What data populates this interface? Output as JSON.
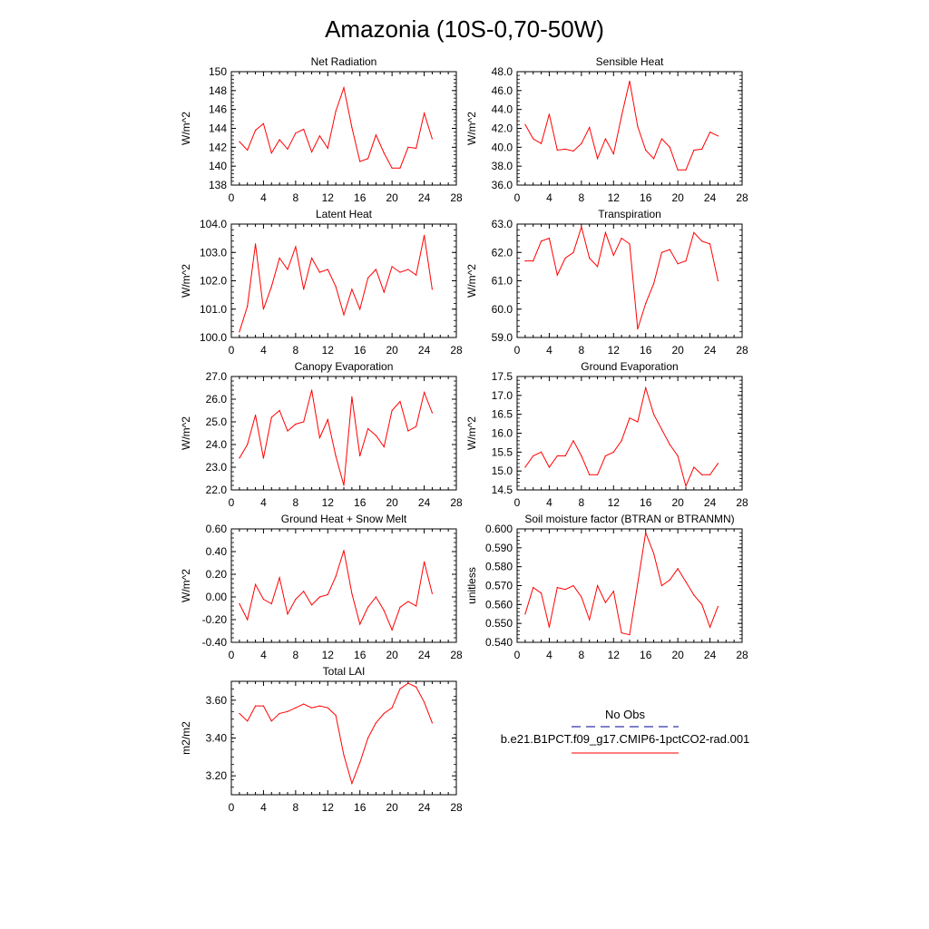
{
  "title": "Amazonia (10S-0,70-50W)",
  "colors": {
    "model_line": "#ff0000",
    "obs_line": "#3333aa",
    "axis": "#000000"
  },
  "legend": {
    "items": [
      {
        "label": "No Obs",
        "style": "dashed",
        "color": "#3333aa"
      },
      {
        "label": "b.e21.B1PCT.f09_g17.CMIP6-1pctCO2-rad.001",
        "style": "solid",
        "color": "#ff0000"
      }
    ]
  },
  "chart_data": [
    {
      "type": "line",
      "title": "Net Radiation",
      "ylabel": "W/m^2",
      "xlim": [
        0,
        28
      ],
      "xticks": [
        0,
        4,
        8,
        12,
        16,
        20,
        24,
        28
      ],
      "ylim": [
        138,
        150
      ],
      "yticks": [
        138,
        140,
        142,
        144,
        146,
        148,
        150
      ],
      "ytick_labels": [
        "138",
        "140",
        "142",
        "144",
        "146",
        "148",
        "150"
      ],
      "series": [
        {
          "name": "b.e21.B1PCT.f09_g17.CMIP6-1pctCO2-rad.001",
          "x": [
            1,
            2,
            3,
            4,
            5,
            6,
            7,
            8,
            9,
            10,
            11,
            12,
            13,
            14,
            15,
            16,
            17,
            18,
            19,
            20,
            21,
            22,
            23,
            24,
            25
          ],
          "y": [
            142.6,
            141.7,
            143.8,
            144.5,
            141.4,
            142.8,
            141.8,
            143.5,
            143.9,
            141.5,
            143.2,
            141.9,
            145.8,
            148.3,
            144.1,
            140.5,
            140.8,
            143.3,
            141.4,
            139.8,
            139.8,
            142.0,
            141.9,
            145.6,
            142.9
          ]
        }
      ]
    },
    {
      "type": "line",
      "title": "Sensible Heat",
      "ylabel": "W/m^2",
      "xlim": [
        0,
        28
      ],
      "xticks": [
        0,
        4,
        8,
        12,
        16,
        20,
        24,
        28
      ],
      "ylim": [
        36,
        48
      ],
      "yticks": [
        36,
        38,
        40,
        42,
        44,
        46,
        48
      ],
      "ytick_labels": [
        "36.0",
        "38.0",
        "40.0",
        "42.0",
        "44.0",
        "46.0",
        "48.0"
      ],
      "series": [
        {
          "name": "b.e21.B1PCT.f09_g17.CMIP6-1pctCO2-rad.001",
          "x": [
            1,
            2,
            3,
            4,
            5,
            6,
            7,
            8,
            9,
            10,
            11,
            12,
            13,
            14,
            15,
            16,
            17,
            18,
            19,
            20,
            21,
            22,
            23,
            24,
            25
          ],
          "y": [
            42.4,
            40.9,
            40.4,
            43.5,
            39.7,
            39.8,
            39.6,
            40.4,
            42.1,
            38.8,
            40.9,
            39.3,
            43.3,
            47.0,
            42.2,
            39.7,
            38.8,
            40.9,
            40.0,
            37.6,
            37.6,
            39.7,
            39.8,
            41.6,
            41.2
          ]
        }
      ]
    },
    {
      "type": "line",
      "title": "Latent Heat",
      "ylabel": "W/m^2",
      "xlim": [
        0,
        28
      ],
      "xticks": [
        0,
        4,
        8,
        12,
        16,
        20,
        24,
        28
      ],
      "ylim": [
        100,
        104
      ],
      "yticks": [
        100,
        101,
        102,
        103,
        104
      ],
      "ytick_labels": [
        "100.0",
        "101.0",
        "102.0",
        "103.0",
        "104.0"
      ],
      "series": [
        {
          "name": "b.e21.B1PCT.f09_g17.CMIP6-1pctCO2-rad.001",
          "x": [
            1,
            2,
            3,
            4,
            5,
            6,
            7,
            8,
            9,
            10,
            11,
            12,
            13,
            14,
            15,
            16,
            17,
            18,
            19,
            20,
            21,
            22,
            23,
            24,
            25
          ],
          "y": [
            100.2,
            101.1,
            103.3,
            101.0,
            101.8,
            102.8,
            102.4,
            103.2,
            101.7,
            102.8,
            102.3,
            102.4,
            101.8,
            100.8,
            101.7,
            101.0,
            102.1,
            102.4,
            101.6,
            102.5,
            102.3,
            102.4,
            102.2,
            103.6,
            101.7
          ]
        }
      ]
    },
    {
      "type": "line",
      "title": "Transpiration",
      "ylabel": "W/m^2",
      "xlim": [
        0,
        28
      ],
      "xticks": [
        0,
        4,
        8,
        12,
        16,
        20,
        24,
        28
      ],
      "ylim": [
        59,
        63
      ],
      "yticks": [
        59,
        60,
        61,
        62,
        63
      ],
      "ytick_labels": [
        "59.0",
        "60.0",
        "61.0",
        "62.0",
        "63.0"
      ],
      "series": [
        {
          "name": "b.e21.B1PCT.f09_g17.CMIP6-1pctCO2-rad.001",
          "x": [
            1,
            2,
            3,
            4,
            5,
            6,
            7,
            8,
            9,
            10,
            11,
            12,
            13,
            14,
            15,
            16,
            17,
            18,
            19,
            20,
            21,
            22,
            23,
            24,
            25
          ],
          "y": [
            61.7,
            61.7,
            62.4,
            62.5,
            61.2,
            61.8,
            62.0,
            62.9,
            61.8,
            61.5,
            62.7,
            61.9,
            62.5,
            62.3,
            59.3,
            60.2,
            60.9,
            62.0,
            62.1,
            61.6,
            61.7,
            62.7,
            62.4,
            62.3,
            61.0
          ]
        }
      ]
    },
    {
      "type": "line",
      "title": "Canopy Evaporation",
      "ylabel": "W/m^2",
      "xlim": [
        0,
        28
      ],
      "xticks": [
        0,
        4,
        8,
        12,
        16,
        20,
        24,
        28
      ],
      "ylim": [
        22,
        27
      ],
      "yticks": [
        22,
        23,
        24,
        25,
        26,
        27
      ],
      "ytick_labels": [
        "22.0",
        "23.0",
        "24.0",
        "25.0",
        "26.0",
        "27.0"
      ],
      "series": [
        {
          "name": "b.e21.B1PCT.f09_g17.CMIP6-1pctCO2-rad.001",
          "x": [
            1,
            2,
            3,
            4,
            5,
            6,
            7,
            8,
            9,
            10,
            11,
            12,
            13,
            14,
            15,
            16,
            17,
            18,
            19,
            20,
            21,
            22,
            23,
            24,
            25
          ],
          "y": [
            23.4,
            24.0,
            25.3,
            23.4,
            25.2,
            25.5,
            24.6,
            24.9,
            25.0,
            26.4,
            24.3,
            25.1,
            23.5,
            22.2,
            26.1,
            23.5,
            24.7,
            24.4,
            23.9,
            25.5,
            25.9,
            24.6,
            24.8,
            26.3,
            25.4
          ]
        }
      ]
    },
    {
      "type": "line",
      "title": "Ground Evaporation",
      "ylabel": "W/m^2",
      "xlim": [
        0,
        28
      ],
      "xticks": [
        0,
        4,
        8,
        12,
        16,
        20,
        24,
        28
      ],
      "ylim": [
        14.5,
        17.5
      ],
      "yticks": [
        14.5,
        15,
        15.5,
        16,
        16.5,
        17,
        17.5
      ],
      "ytick_labels": [
        "14.5",
        "15.0",
        "15.5",
        "16.0",
        "16.5",
        "17.0",
        "17.5"
      ],
      "series": [
        {
          "name": "b.e21.B1PCT.f09_g17.CMIP6-1pctCO2-rad.001",
          "x": [
            1,
            2,
            3,
            4,
            5,
            6,
            7,
            8,
            9,
            10,
            11,
            12,
            13,
            14,
            15,
            16,
            17,
            18,
            19,
            20,
            21,
            22,
            23,
            24,
            25
          ],
          "y": [
            15.1,
            15.4,
            15.5,
            15.1,
            15.4,
            15.4,
            15.8,
            15.4,
            14.9,
            14.9,
            15.4,
            15.5,
            15.8,
            16.4,
            16.3,
            17.2,
            16.5,
            16.1,
            15.7,
            15.4,
            14.6,
            15.1,
            14.9,
            14.9,
            15.2
          ]
        }
      ]
    },
    {
      "type": "line",
      "title": "Ground Heat + Snow Melt",
      "ylabel": "W/m^2",
      "xlim": [
        0,
        28
      ],
      "xticks": [
        0,
        4,
        8,
        12,
        16,
        20,
        24,
        28
      ],
      "ylim": [
        -0.4,
        0.6
      ],
      "yticks": [
        -0.4,
        -0.2,
        0,
        0.2,
        0.4,
        0.6
      ],
      "ytick_labels": [
        "-0.40",
        "-0.20",
        "0.00",
        "0.20",
        "0.40",
        "0.60"
      ],
      "series": [
        {
          "name": "b.e21.B1PCT.f09_g17.CMIP6-1pctCO2-rad.001",
          "x": [
            1,
            2,
            3,
            4,
            5,
            6,
            7,
            8,
            9,
            10,
            11,
            12,
            13,
            14,
            15,
            16,
            17,
            18,
            19,
            20,
            21,
            22,
            23,
            24,
            25
          ],
          "y": [
            -0.06,
            -0.2,
            0.11,
            -0.02,
            -0.06,
            0.17,
            -0.15,
            -0.02,
            0.05,
            -0.07,
            0.0,
            0.02,
            0.18,
            0.41,
            0.03,
            -0.24,
            -0.09,
            0.0,
            -0.12,
            -0.29,
            -0.09,
            -0.04,
            -0.08,
            0.31,
            0.03
          ]
        }
      ]
    },
    {
      "type": "line",
      "title": "Soil moisture factor (BTRAN or BTRANMN)",
      "ylabel": "unitless",
      "xlim": [
        0,
        28
      ],
      "xticks": [
        0,
        4,
        8,
        12,
        16,
        20,
        24,
        28
      ],
      "ylim": [
        0.54,
        0.6
      ],
      "yticks": [
        0.54,
        0.55,
        0.56,
        0.57,
        0.58,
        0.59,
        0.6
      ],
      "ytick_labels": [
        "0.540",
        "0.550",
        "0.560",
        "0.570",
        "0.580",
        "0.590",
        "0.600"
      ],
      "series": [
        {
          "name": "b.e21.B1PCT.f09_g17.CMIP6-1pctCO2-rad.001",
          "x": [
            1,
            2,
            3,
            4,
            5,
            6,
            7,
            8,
            9,
            10,
            11,
            12,
            13,
            14,
            15,
            16,
            17,
            18,
            19,
            20,
            21,
            22,
            23,
            24,
            25
          ],
          "y": [
            0.555,
            0.569,
            0.566,
            0.548,
            0.569,
            0.568,
            0.57,
            0.564,
            0.552,
            0.57,
            0.561,
            0.567,
            0.545,
            0.544,
            0.571,
            0.598,
            0.587,
            0.57,
            0.573,
            0.579,
            0.572,
            0.565,
            0.56,
            0.548,
            0.559
          ]
        }
      ]
    },
    {
      "type": "line",
      "title": "Total LAI",
      "ylabel": "m2/m2",
      "xlim": [
        0,
        28
      ],
      "xticks": [
        0,
        4,
        8,
        12,
        16,
        20,
        24,
        28
      ],
      "ylim": [
        3.1,
        3.7
      ],
      "yticks": [
        3.2,
        3.4,
        3.6
      ],
      "ytick_labels": [
        "3.20",
        "3.40",
        "3.60"
      ],
      "series": [
        {
          "name": "b.e21.B1PCT.f09_g17.CMIP6-1pctCO2-rad.001",
          "x": [
            1,
            2,
            3,
            4,
            5,
            6,
            7,
            8,
            9,
            10,
            11,
            12,
            13,
            14,
            15,
            16,
            17,
            18,
            19,
            20,
            21,
            22,
            23,
            24,
            25
          ],
          "y": [
            3.53,
            3.49,
            3.57,
            3.57,
            3.49,
            3.53,
            3.54,
            3.56,
            3.58,
            3.56,
            3.57,
            3.56,
            3.52,
            3.31,
            3.16,
            3.27,
            3.4,
            3.48,
            3.53,
            3.56,
            3.66,
            3.69,
            3.67,
            3.59,
            3.48
          ]
        }
      ]
    }
  ]
}
